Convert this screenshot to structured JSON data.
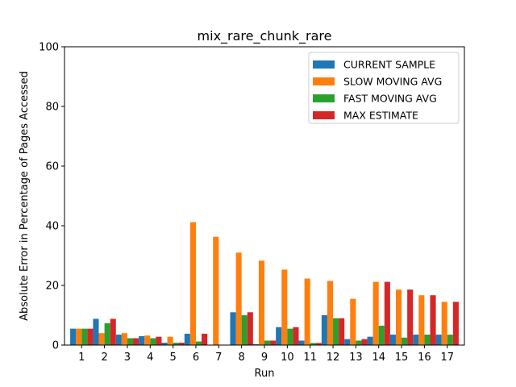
{
  "chart_data": {
    "type": "bar",
    "title": "mix_rare_chunk_rare",
    "xlabel": "Run",
    "ylabel": "Absolute Error in Percentage of Pages Accessed",
    "ylim": [
      0,
      100
    ],
    "yticks": [
      0,
      20,
      40,
      60,
      80,
      100
    ],
    "categories": [
      "1",
      "2",
      "3",
      "4",
      "5",
      "6",
      "7",
      "8",
      "9",
      "10",
      "11",
      "12",
      "13",
      "14",
      "15",
      "16",
      "17"
    ],
    "legend_position": "top-right",
    "grid": false,
    "series": [
      {
        "name": "CURRENT SAMPLE",
        "color": "#1f77b4",
        "values": [
          5.5,
          8.8,
          3.5,
          3.0,
          0.8,
          3.8,
          0.0,
          11.0,
          0.3,
          6.0,
          1.5,
          10.0,
          2.0,
          2.8,
          3.5,
          3.5,
          3.5
        ]
      },
      {
        "name": "SLOW MOVING AVG",
        "color": "#ff7f0e",
        "values": [
          5.5,
          4.0,
          4.0,
          3.2,
          2.8,
          41.2,
          36.3,
          31.0,
          28.3,
          25.3,
          22.3,
          21.5,
          15.5,
          21.2,
          18.6,
          16.7,
          14.5
        ]
      },
      {
        "name": "FAST MOVING AVG",
        "color": "#2ca02c",
        "values": [
          5.5,
          7.3,
          2.3,
          2.3,
          0.8,
          1.2,
          0.0,
          10.0,
          1.5,
          5.5,
          0.7,
          9.0,
          1.5,
          6.5,
          2.5,
          3.5,
          3.5
        ]
      },
      {
        "name": "MAX ESTIMATE",
        "color": "#d62728",
        "values": [
          5.5,
          8.8,
          2.3,
          2.8,
          0.8,
          3.8,
          0.0,
          11.0,
          1.5,
          6.0,
          0.7,
          9.0,
          2.0,
          21.2,
          18.6,
          16.7,
          14.5
        ]
      }
    ]
  }
}
